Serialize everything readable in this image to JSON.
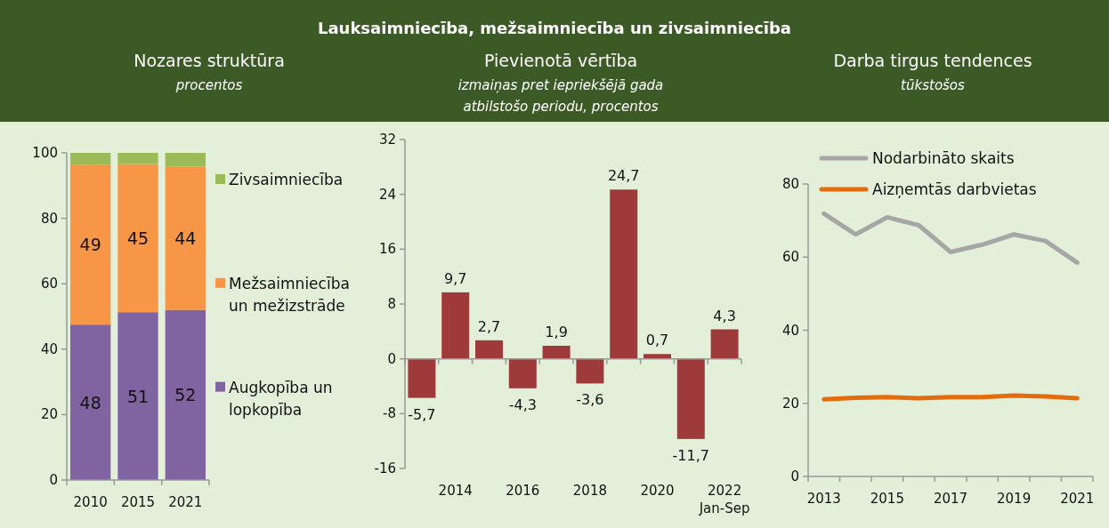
{
  "chart_data": [
    {
      "type": "bar",
      "stacked": true,
      "title": "Nozares struktūra",
      "subtitle": "procentos",
      "annotations": [
        "Lauksaimniecība, mežsaimniecība un zivsaimniecība"
      ],
      "categories": [
        "2010",
        "2015",
        "2021"
      ],
      "ylim": [
        0,
        100
      ],
      "yticks": [
        0,
        20,
        40,
        60,
        80,
        100
      ],
      "legend": "right",
      "series": [
        {
          "name": "Augkopība un lopkopība",
          "color": "#8064a2",
          "values": [
            47.5,
            51.3,
            52.0
          ],
          "value_labels": [
            "48",
            "51",
            "52"
          ]
        },
        {
          "name": "Mežsaimniecība un mežizstrāde",
          "color": "#f79646",
          "values": [
            48.9,
            45.3,
            43.8
          ],
          "value_labels": [
            "49",
            "45",
            "44"
          ]
        },
        {
          "name": "Zivsaimniecība",
          "color": "#9bbb59",
          "values": [
            3.6,
            3.4,
            4.2
          ]
        }
      ]
    },
    {
      "type": "bar",
      "title": "Pievienotā vērtība",
      "subtitle": "izmaiņas pret iepriekšējā gada\natbilstošo periodu, procentos",
      "categories": [
        null,
        "2014",
        null,
        "2016",
        null,
        "2018",
        null,
        "2020",
        null,
        "2022\nJan-Sep"
      ],
      "ylim": [
        -16,
        32
      ],
      "yticks": [
        -16,
        -8,
        0,
        8,
        16,
        24,
        32
      ],
      "series": [
        {
          "color": "#9e3a3a",
          "values": [
            -5.7,
            9.7,
            2.7,
            -4.3,
            1.9,
            -3.6,
            24.7,
            0.7,
            -11.7,
            4.3
          ],
          "value_labels": [
            "-5,7",
            "9,7",
            "2,7",
            "-4,3",
            "1,9",
            "-3,6",
            "24,7",
            "0,7",
            "-11,7",
            "4,3"
          ]
        }
      ]
    },
    {
      "type": "line",
      "title": "Darba tirgus tendences",
      "subtitle": "tūkstošos",
      "categories": [
        "2013",
        null,
        "2015",
        null,
        "2017",
        null,
        "2019",
        null,
        "2021"
      ],
      "ylim": [
        0,
        80
      ],
      "yticks": [
        0,
        20,
        40,
        60,
        80
      ],
      "legend": "top left",
      "series": [
        {
          "name": "Nodarbināto skaits",
          "color": "#a6a6a6",
          "values": [
            71.9,
            66.2,
            70.9,
            68.7,
            61.4,
            63.4,
            66.2,
            64.4,
            58.5
          ]
        },
        {
          "name": "Aizņemtās darbvietas",
          "color": "#e46c0a",
          "values": [
            21.1,
            21.5,
            21.7,
            21.4,
            21.7,
            21.7,
            22.1,
            21.9,
            21.4
          ]
        }
      ]
    }
  ]
}
